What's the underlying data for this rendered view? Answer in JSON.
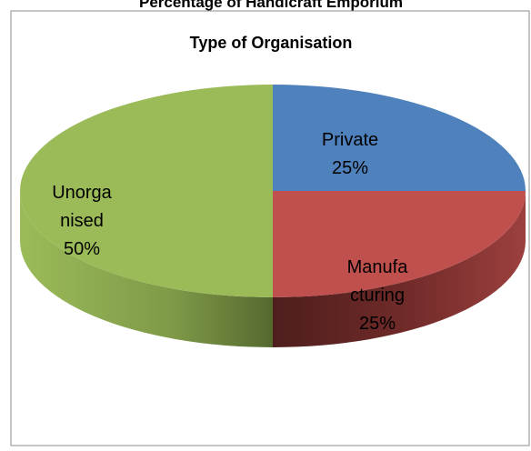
{
  "chart_data": {
    "type": "pie3d",
    "header": "Percentage of Handicraft Emporium",
    "title": "Type of Organisation",
    "categories": [
      "Private",
      "Manufacturing",
      "Unorganised"
    ],
    "values": [
      25,
      25,
      50
    ],
    "value_labels": [
      "25%",
      "25%",
      "50%"
    ],
    "colors": [
      "#4f81bd",
      "#c0504d",
      "#9bbb59"
    ]
  }
}
